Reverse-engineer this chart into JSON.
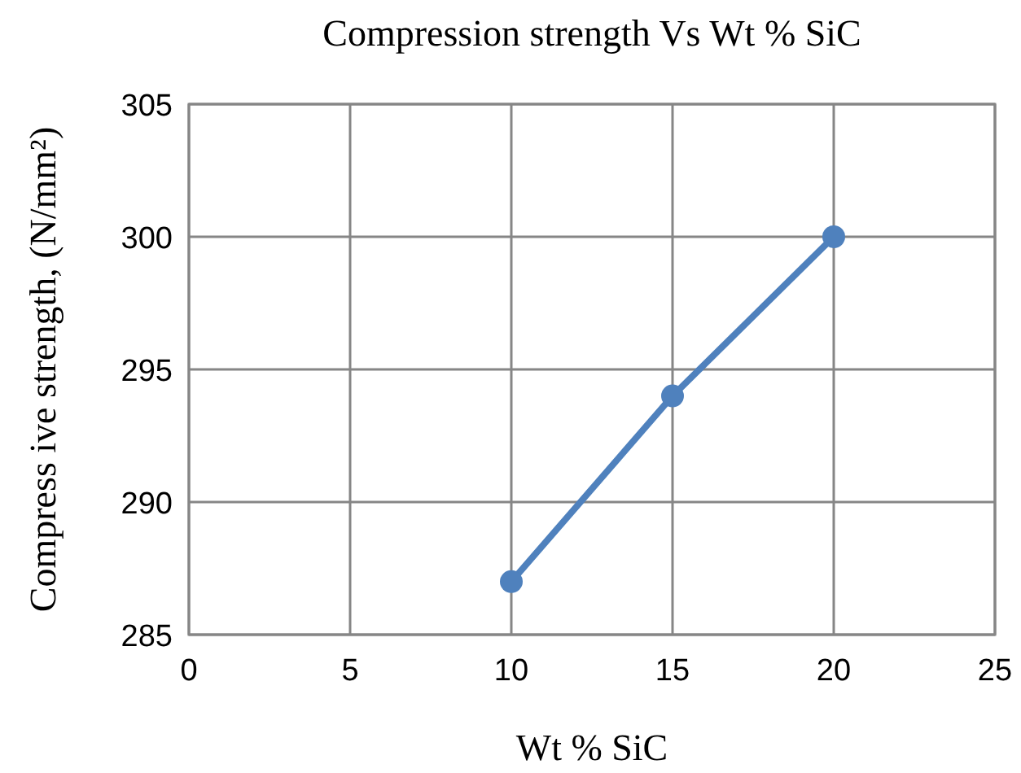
{
  "chart_data": {
    "type": "line",
    "title": "Compression strength Vs Wt % SiC",
    "xlabel": "Wt % SiC",
    "ylabel": "Compress ive strength, (N/mm²)",
    "x": [
      10,
      15,
      20
    ],
    "series": [
      {
        "color": "#4f81bd",
        "values": [
          287,
          294,
          300
        ]
      }
    ],
    "xlim": [
      0,
      25
    ],
    "xticks": [
      0,
      5,
      10,
      15,
      20,
      25
    ],
    "ylim": [
      285,
      305
    ],
    "yticks": [
      285,
      290,
      295,
      300,
      305
    ],
    "grid": true,
    "marker": "circle",
    "line_style": "solid"
  }
}
